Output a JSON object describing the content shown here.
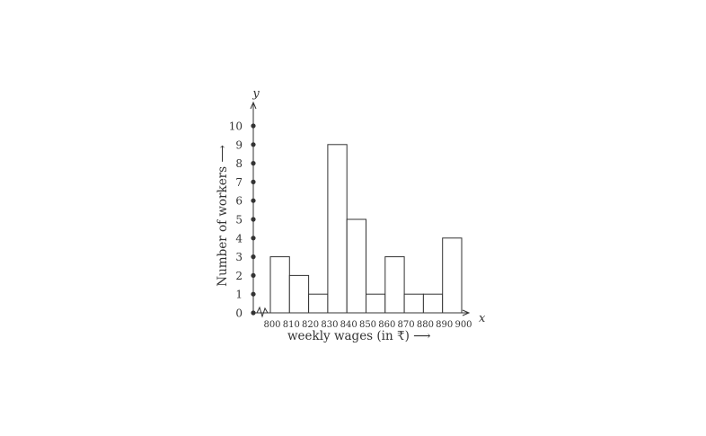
{
  "chart_data": {
    "type": "bar",
    "histogram": true,
    "categories": [
      "800-810",
      "810-820",
      "820-830",
      "830-840",
      "840-850",
      "850-860",
      "860-870",
      "870-880",
      "880-890",
      "890-900"
    ],
    "x_ticks": [
      "800",
      "810",
      "820",
      "830",
      "840",
      "850",
      "860",
      "870",
      "880",
      "890",
      "900"
    ],
    "values": [
      3,
      2,
      1,
      9,
      5,
      1,
      3,
      1,
      1,
      4
    ],
    "y_ticks": [
      "0",
      "1",
      "2",
      "3",
      "4",
      "5",
      "6",
      "7",
      "8",
      "9",
      "10"
    ],
    "ylim": [
      0,
      10
    ],
    "xlim": [
      800,
      900
    ],
    "xlabel": "weekly wages (in ₹) ⟶",
    "ylabel": "Number of workers ⟶",
    "x_axis_letter": "x",
    "y_axis_letter": "y",
    "grid": false,
    "axis_break_on_x": true,
    "colors": {
      "bar_fill": "#ffffff",
      "bar_stroke": "#333333",
      "dots": "#333333"
    }
  }
}
